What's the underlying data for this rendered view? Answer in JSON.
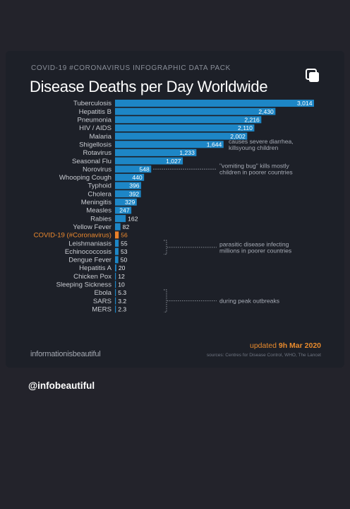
{
  "header": {
    "pack_label": "COVID-19 #CORONAVIRUS INFOGRAPHIC DATA PACK"
  },
  "footer": {
    "brand": "informationisbeautiful",
    "updated_prefix": "updated",
    "updated_date": "9h Mar 2020",
    "sources": "sources: Centres for Disease Control, WHO, The Lancet"
  },
  "post": {
    "handle": "@infobeautiful"
  },
  "icons": {
    "copy": "copy-icon"
  },
  "colors": {
    "bar": "#1d86c6",
    "highlight": "#e8812a",
    "highlight_text": "#ee8a2e",
    "label": "#c9ccd2",
    "annotation": "#a6abb5"
  },
  "chart_data": {
    "type": "bar",
    "orientation": "horizontal",
    "title": "Disease Deaths per Day Worldwide",
    "xlim": [
      0,
      3014
    ],
    "highlight": "COVID-19 (#Coronavirus)",
    "categories": [
      "Tuberculosis",
      "Hepatitis B",
      "Pneumonia",
      "HIV / AIDS",
      "Malaria",
      "Shigellosis",
      "Rotavirus",
      "Seasonal Flu",
      "Norovirus",
      "Whooping Cough",
      "Typhoid",
      "Cholera",
      "Meningitis",
      "Measles",
      "Rabies",
      "Yellow Fever",
      "COVID-19 (#Coronavirus)",
      "Leishmaniasis",
      "Echinococcosis",
      "Dengue Fever",
      "Hepatitis A",
      "Chicken Pox",
      "Sleeping Sickness",
      "Ebola",
      "SARS",
      "MERS"
    ],
    "values": [
      3014,
      2430,
      2216,
      2110,
      2002,
      1644,
      1233,
      1027,
      548,
      440,
      396,
      392,
      329,
      247,
      162,
      82,
      56,
      55,
      53,
      50,
      20,
      12,
      10,
      5.3,
      3.2,
      2.3
    ],
    "value_labels": [
      "3,014",
      "2,430",
      "2,216",
      "2,110",
      "2,002",
      "1,644",
      "1,233",
      "1,027",
      "548",
      "440",
      "396",
      "392",
      "329",
      "247",
      "162",
      "82",
      "56",
      "55",
      "53",
      "50",
      "20",
      "12",
      "10",
      "5.3",
      "3.2",
      "2.3"
    ],
    "annotations": [
      {
        "lines": [
          "causes severe diarrhea,",
          "killsyoung children"
        ],
        "near": "Shigellosis",
        "span": [
          "Shigellosis",
          "Shigellosis"
        ]
      },
      {
        "lines": [
          "\"vomiting bug\" kills mostly",
          "children in poorer countries"
        ],
        "near": "Norovirus",
        "span": [
          "Norovirus",
          "Norovirus"
        ]
      },
      {
        "lines": [
          "parasitic disease infecting",
          "millions in poorer countries"
        ],
        "near": "Leishmaniasis",
        "span": [
          "Leishmaniasis",
          "Echinococcosis"
        ]
      },
      {
        "lines": [
          "during peak outbreaks"
        ],
        "near": "Ebola",
        "span": [
          "Ebola",
          "MERS"
        ]
      }
    ]
  }
}
